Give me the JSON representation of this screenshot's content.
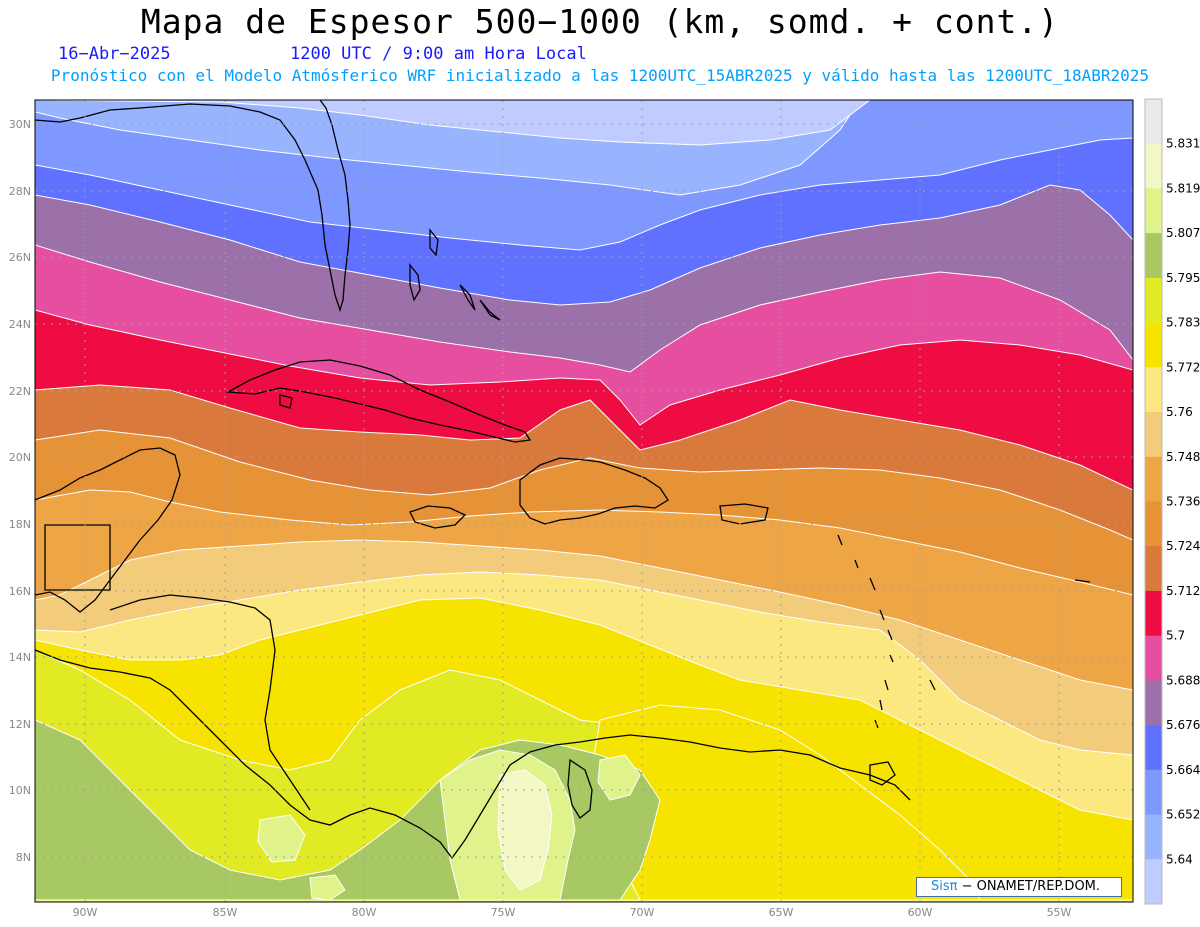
{
  "header": {
    "title": "Mapa de Espesor 500−1000 (km, somd. + cont.)",
    "date": "16−Abr−2025",
    "time": "1200 UTC / 9:00 am Hora Local",
    "forecast": "Pronóstico con el Modelo Atmósferico WRF inicializado a las 1200UTC_15ABR2025 y válido hasta las  1200UTC_18ABR2025"
  },
  "axes": {
    "lat_labels": [
      "30N",
      "28N",
      "26N",
      "24N",
      "22N",
      "20N",
      "18N",
      "16N",
      "14N",
      "12N",
      "10N",
      "8N"
    ],
    "lon_labels": [
      "90W",
      "85W",
      "80W",
      "75W",
      "70W",
      "65W",
      "60W",
      "55W"
    ]
  },
  "colorbar": {
    "labels": [
      "5.831",
      "5.819",
      "5.807",
      "5.795",
      "5.783",
      "5.772",
      "5.76",
      "5.748",
      "5.736",
      "5.724",
      "5.712",
      "5.7",
      "5.688",
      "5.676",
      "5.664",
      "5.652",
      "5.64"
    ],
    "colors": [
      "#eaeaea",
      "#f2f7c4",
      "#e0f28a",
      "#a8c864",
      "#e2ea24",
      "#f6e400",
      "#fbe880",
      "#f2cc7a",
      "#eea545",
      "#e69338",
      "#d97a3c",
      "#ee0c43",
      "#e64fa0",
      "#9c70a8",
      "#6070ff",
      "#7e98ff",
      "#98b4ff",
      "#c0ccff"
    ]
  },
  "credit": {
    "logo": "Sisπ",
    "text": "− ONAMET/REP.DOM."
  }
}
